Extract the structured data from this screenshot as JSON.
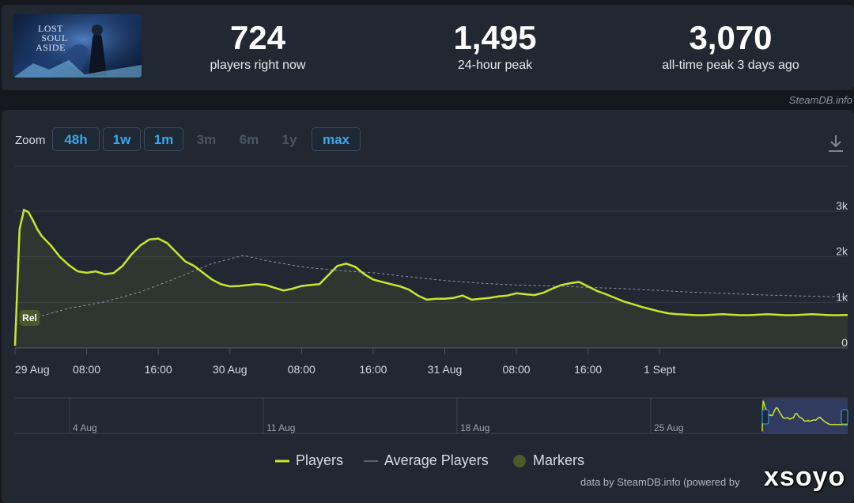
{
  "game": {
    "logo_text": [
      "LOST",
      "SOUL",
      "ASIDE"
    ]
  },
  "stats": [
    {
      "value": "724",
      "label": "players right now"
    },
    {
      "value": "1,495",
      "label": "24-hour peak"
    },
    {
      "value": "3,070",
      "label": "all-time peak 3 days ago"
    }
  ],
  "source_top": "SteamDB.info",
  "zoom": {
    "label": "Zoom",
    "buttons": [
      {
        "label": "48h",
        "enabled": true
      },
      {
        "label": "1w",
        "enabled": true
      },
      {
        "label": "1m",
        "enabled": true
      },
      {
        "label": "3m",
        "enabled": false
      },
      {
        "label": "6m",
        "enabled": false
      },
      {
        "label": "1y",
        "enabled": false
      },
      {
        "label": "max",
        "enabled": true
      }
    ]
  },
  "icons": {
    "download": "download-icon"
  },
  "colors": {
    "players": "#c8e62e",
    "average": "#8d96a3",
    "markers": "#4a5a2c",
    "accent": "#3aa6e8"
  },
  "chart_data": {
    "type": "line",
    "x_unit": "hours since 29 Aug 00:00",
    "xlim": [
      0,
      93
    ],
    "ylim": [
      0,
      3000
    ],
    "y_ticks": [
      {
        "v": 0,
        "label": "0"
      },
      {
        "v": 1000,
        "label": "1k"
      },
      {
        "v": 2000,
        "label": "2k"
      },
      {
        "v": 3000,
        "label": "3k"
      }
    ],
    "x_ticks": [
      {
        "x": 0,
        "label": "29 Aug"
      },
      {
        "x": 8,
        "label": "08:00"
      },
      {
        "x": 16,
        "label": "16:00"
      },
      {
        "x": 24,
        "label": "30 Aug"
      },
      {
        "x": 32,
        "label": "08:00"
      },
      {
        "x": 40,
        "label": "16:00"
      },
      {
        "x": 48,
        "label": "31 Aug"
      },
      {
        "x": 56,
        "label": "08:00"
      },
      {
        "x": 64,
        "label": "16:00"
      },
      {
        "x": 72,
        "label": "1 Sept"
      }
    ],
    "grid": true,
    "series": [
      {
        "name": "Players",
        "x": [
          0,
          0.5,
          1,
          1.5,
          2,
          2.5,
          3,
          4,
          5,
          6,
          7,
          8,
          9,
          10,
          11,
          12,
          13,
          14,
          15,
          16,
          17,
          18,
          19,
          20,
          21,
          22,
          23,
          24,
          25,
          26,
          27,
          28,
          29,
          30,
          31,
          32,
          33,
          34,
          35,
          36,
          37,
          38,
          39,
          40,
          41,
          42,
          43,
          44,
          45,
          46,
          47,
          48,
          49,
          50,
          51,
          52,
          53,
          54,
          55,
          56,
          57,
          58,
          59,
          60,
          61,
          62,
          63,
          64,
          65,
          66,
          67,
          68,
          69,
          70,
          71,
          72,
          73,
          74,
          75,
          76,
          77,
          78,
          79,
          80,
          81,
          82,
          83,
          84,
          85,
          86,
          87,
          88,
          89,
          90,
          91,
          92,
          93
        ],
        "values": [
          50,
          2600,
          3030,
          2980,
          2800,
          2600,
          2450,
          2250,
          2000,
          1820,
          1680,
          1650,
          1680,
          1620,
          1640,
          1800,
          2050,
          2250,
          2380,
          2400,
          2300,
          2100,
          1900,
          1800,
          1650,
          1500,
          1400,
          1350,
          1360,
          1380,
          1400,
          1380,
          1320,
          1260,
          1300,
          1360,
          1380,
          1400,
          1600,
          1800,
          1850,
          1780,
          1620,
          1500,
          1450,
          1400,
          1350,
          1280,
          1150,
          1060,
          1080,
          1080,
          1100,
          1150,
          1060,
          1080,
          1100,
          1130,
          1150,
          1200,
          1180,
          1160,
          1210,
          1300,
          1380,
          1420,
          1450,
          1350,
          1250,
          1180,
          1100,
          1020,
          960,
          900,
          850,
          800,
          760,
          740,
          730,
          720,
          720,
          730,
          740,
          730,
          720,
          720,
          730,
          740,
          730,
          720,
          720,
          730,
          740,
          730,
          720,
          720,
          724
        ]
      },
      {
        "name": "Average Players",
        "x": [
          0,
          2,
          6,
          10,
          14,
          18,
          22,
          25.5,
          28,
          32,
          36,
          40,
          44,
          48,
          52,
          56,
          60,
          64,
          68,
          72,
          76,
          80,
          84,
          88,
          93
        ],
        "values": [
          500,
          650,
          870,
          1010,
          1230,
          1530,
          1850,
          2030,
          1920,
          1780,
          1700,
          1650,
          1560,
          1480,
          1420,
          1380,
          1360,
          1330,
          1300,
          1260,
          1220,
          1190,
          1160,
          1140,
          1120
        ]
      }
    ],
    "markers": [
      {
        "x": 0.4,
        "value": 660,
        "label": "Rel"
      }
    ],
    "navigator": {
      "ticks": [
        "4 Aug",
        "11 Aug",
        "18 Aug",
        "25 Aug"
      ]
    },
    "legend": [
      {
        "label": "Players",
        "kind": "line"
      },
      {
        "label": "Average Players",
        "kind": "dash"
      },
      {
        "label": "Markers",
        "kind": "dot"
      }
    ],
    "legend_placement": "bottom",
    "footer": "data by SteamDB.info (powered by"
  },
  "watermark": "xsoyo"
}
